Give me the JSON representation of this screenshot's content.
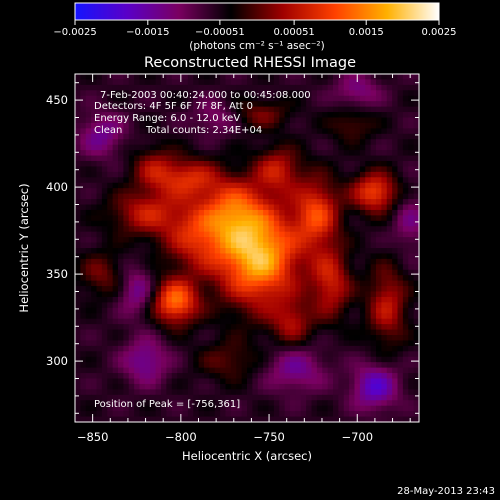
{
  "chart_data": {
    "type": "heatmap",
    "title": "Reconstructed RHESSI Image",
    "xlabel": "Heliocentric X (arcsec)",
    "ylabel": "Heliocentric Y (arcsec)",
    "xlim": [
      -860,
      -665
    ],
    "ylim": [
      265,
      465
    ],
    "x_ticks": [
      -850,
      -800,
      -750,
      -700
    ],
    "x_tick_labels": [
      "−850",
      "−800",
      "−750",
      "−700"
    ],
    "y_ticks": [
      300,
      350,
      400,
      450
    ],
    "y_tick_labels": [
      "300",
      "350",
      "400",
      "450"
    ],
    "colorbar": {
      "range": [
        -0.0025,
        0.0025
      ],
      "ticks": [
        -0.0025,
        -0.0015,
        -0.00051,
        0.00051,
        0.0015,
        0.0025
      ],
      "tick_labels": [
        "−0.0025",
        "−0.0015",
        "−0.00051",
        "0.00051",
        "0.0015",
        "0.0025"
      ],
      "unit_label": "(photons cm⁻² s⁻¹ asec⁻²)",
      "colors": [
        "#1414ff",
        "#5a00c8",
        "#7a0060",
        "#000000",
        "#a00000",
        "#ff4000",
        "#ffb000",
        "#ffffff"
      ]
    },
    "peak": {
      "x": -756,
      "y": 361,
      "value": 0.0025
    },
    "sources": [
      {
        "x": -756,
        "y": 361,
        "sx": 16,
        "sy": 20,
        "v": 0.0025
      },
      {
        "x": -770,
        "y": 388,
        "sx": 12,
        "sy": 12,
        "v": 0.0012
      },
      {
        "x": -790,
        "y": 372,
        "sx": 14,
        "sy": 14,
        "v": 0.0013
      },
      {
        "x": -803,
        "y": 334,
        "sx": 9,
        "sy": 9,
        "v": 0.0019
      },
      {
        "x": -820,
        "y": 385,
        "sx": 14,
        "sy": 9,
        "v": 0.0011
      },
      {
        "x": -815,
        "y": 410,
        "sx": 9,
        "sy": 9,
        "v": 0.0009
      },
      {
        "x": -795,
        "y": 405,
        "sx": 12,
        "sy": 8,
        "v": 0.0012
      },
      {
        "x": -745,
        "y": 410,
        "sx": 9,
        "sy": 9,
        "v": 0.0011
      },
      {
        "x": -723,
        "y": 385,
        "sx": 9,
        "sy": 14,
        "v": 0.0015
      },
      {
        "x": -715,
        "y": 345,
        "sx": 8,
        "sy": 14,
        "v": 0.0012
      },
      {
        "x": -690,
        "y": 397,
        "sx": 9,
        "sy": 8,
        "v": 0.0016
      },
      {
        "x": -683,
        "y": 332,
        "sx": 8,
        "sy": 16,
        "v": 0.0011
      },
      {
        "x": -737,
        "y": 322,
        "sx": 8,
        "sy": 9,
        "v": 0.0009
      },
      {
        "x": -755,
        "y": 442,
        "sx": 12,
        "sy": 6,
        "v": 0.0007
      },
      {
        "x": -703,
        "y": 436,
        "sx": 9,
        "sy": 7,
        "v": 0.0006
      },
      {
        "x": -845,
        "y": 350,
        "sx": 9,
        "sy": 9,
        "v": 0.0007
      },
      {
        "x": -773,
        "y": 300,
        "sx": 12,
        "sy": 8,
        "v": 0.0006
      },
      {
        "x": -820,
        "y": 300,
        "sx": 9,
        "sy": 9,
        "v": -0.0009
      },
      {
        "x": -735,
        "y": 295,
        "sx": 12,
        "sy": 9,
        "v": -0.0008
      },
      {
        "x": -690,
        "y": 285,
        "sx": 9,
        "sy": 9,
        "v": -0.0012
      },
      {
        "x": -825,
        "y": 340,
        "sx": 7,
        "sy": 10,
        "v": -0.0008
      },
      {
        "x": -845,
        "y": 430,
        "sx": 9,
        "sy": 9,
        "v": -0.0008
      },
      {
        "x": -700,
        "y": 455,
        "sx": 9,
        "sy": 7,
        "v": -0.0007
      },
      {
        "x": -670,
        "y": 380,
        "sx": 7,
        "sy": 12,
        "v": -0.0006
      },
      {
        "x": -780,
        "y": 440,
        "sx": 9,
        "sy": 7,
        "v": -0.0006
      }
    ]
  },
  "info": {
    "time_range": "7-Feb-2003 00:40:24.000 to 00:45:08.000",
    "detectors": "Detectors: 4F 5F 6F 7F 8F, Att 0",
    "energy_range": "Energy Range: 6.0 - 12.0 keV",
    "method": "Clean",
    "total_counts": "Total counts: 2.34E+04",
    "peak_label": "Position of Peak = [-756,361]"
  },
  "footer_timestamp": "28-May-2013 23:43"
}
